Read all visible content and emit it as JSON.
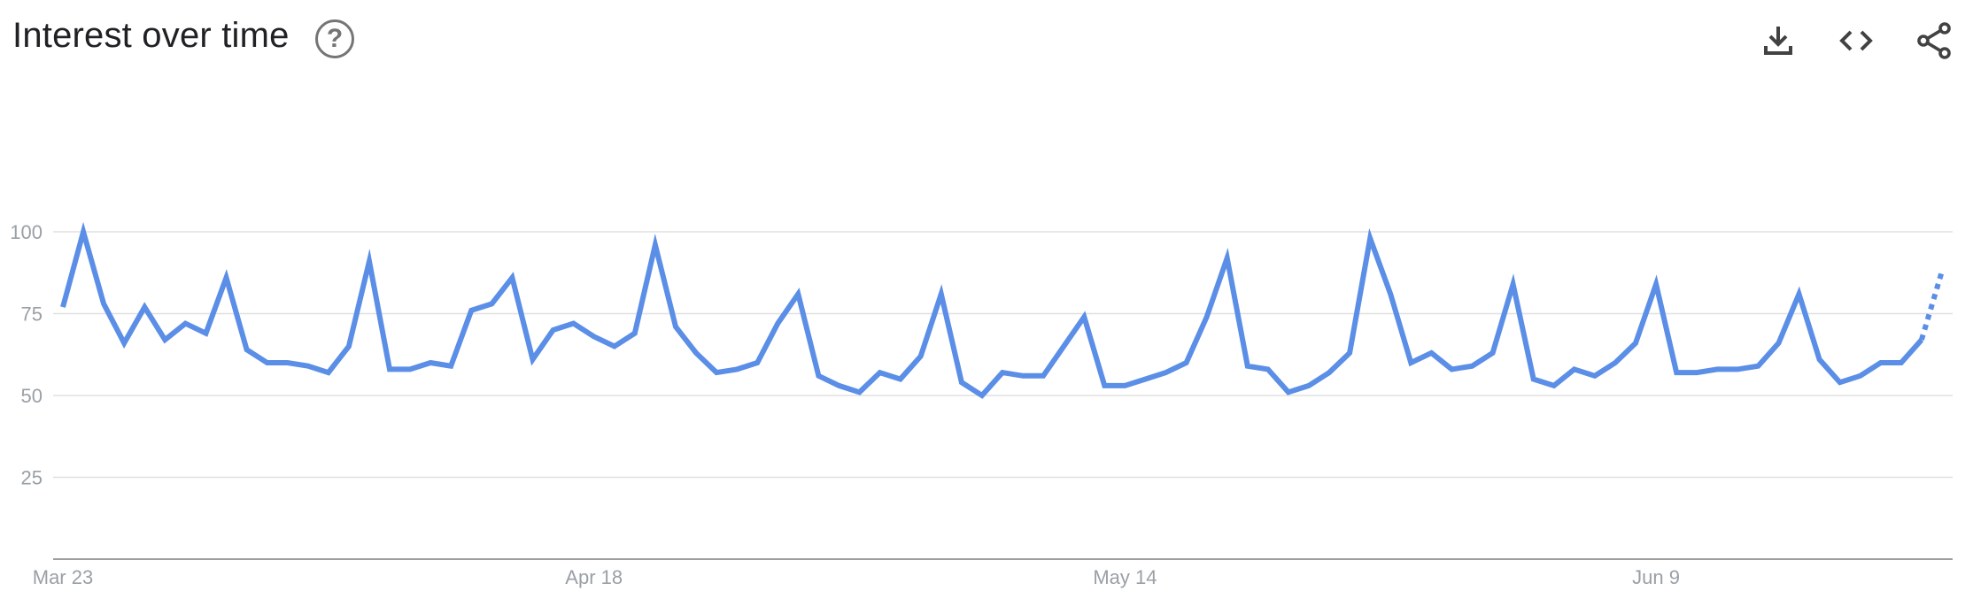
{
  "header": {
    "title": "Interest over time",
    "help_icon": "help-circle-icon",
    "download_icon": "download-icon",
    "embed_icon": "code-icon",
    "share_icon": "share-icon"
  },
  "colors": {
    "line": "#5b8ee6",
    "grid": "#e0e0e0",
    "axis": "#9e9e9e",
    "tick_text": "#9aa0a6",
    "icon": "#424242"
  },
  "chart_data": {
    "type": "line",
    "title": "",
    "xlabel": "",
    "ylabel": "",
    "ylim": [
      0,
      100
    ],
    "yticks": [
      25,
      50,
      75,
      100
    ],
    "ytick_labels": [
      "25",
      "50",
      "75",
      "100"
    ],
    "x_tick_labels": [
      {
        "label": "Mar 23",
        "index": 0
      },
      {
        "label": "Apr 18",
        "index": 26
      },
      {
        "label": "May 14",
        "index": 52
      },
      {
        "label": "Jun 9",
        "index": 78
      }
    ],
    "grid": true,
    "partial_last_point": true,
    "series": [
      {
        "values": [
          77,
          100,
          78,
          66,
          77,
          67,
          72,
          69,
          86,
          64,
          60,
          60,
          59,
          57,
          65,
          91,
          58,
          58,
          60,
          59,
          76,
          78,
          86,
          61,
          70,
          72,
          68,
          65,
          69,
          96,
          71,
          63,
          57,
          58,
          60,
          72,
          81,
          56,
          53,
          51,
          57,
          55,
          62,
          81,
          54,
          50,
          57,
          56,
          56,
          65,
          74,
          53,
          53,
          55,
          57,
          60,
          74,
          92,
          59,
          58,
          51,
          53,
          57,
          63,
          98,
          81,
          60,
          63,
          58,
          59,
          63,
          84,
          55,
          53,
          58,
          56,
          60,
          66,
          84,
          57,
          57,
          58,
          58,
          59,
          66,
          81,
          61,
          54,
          56,
          60,
          60,
          67,
          88
        ]
      }
    ]
  }
}
